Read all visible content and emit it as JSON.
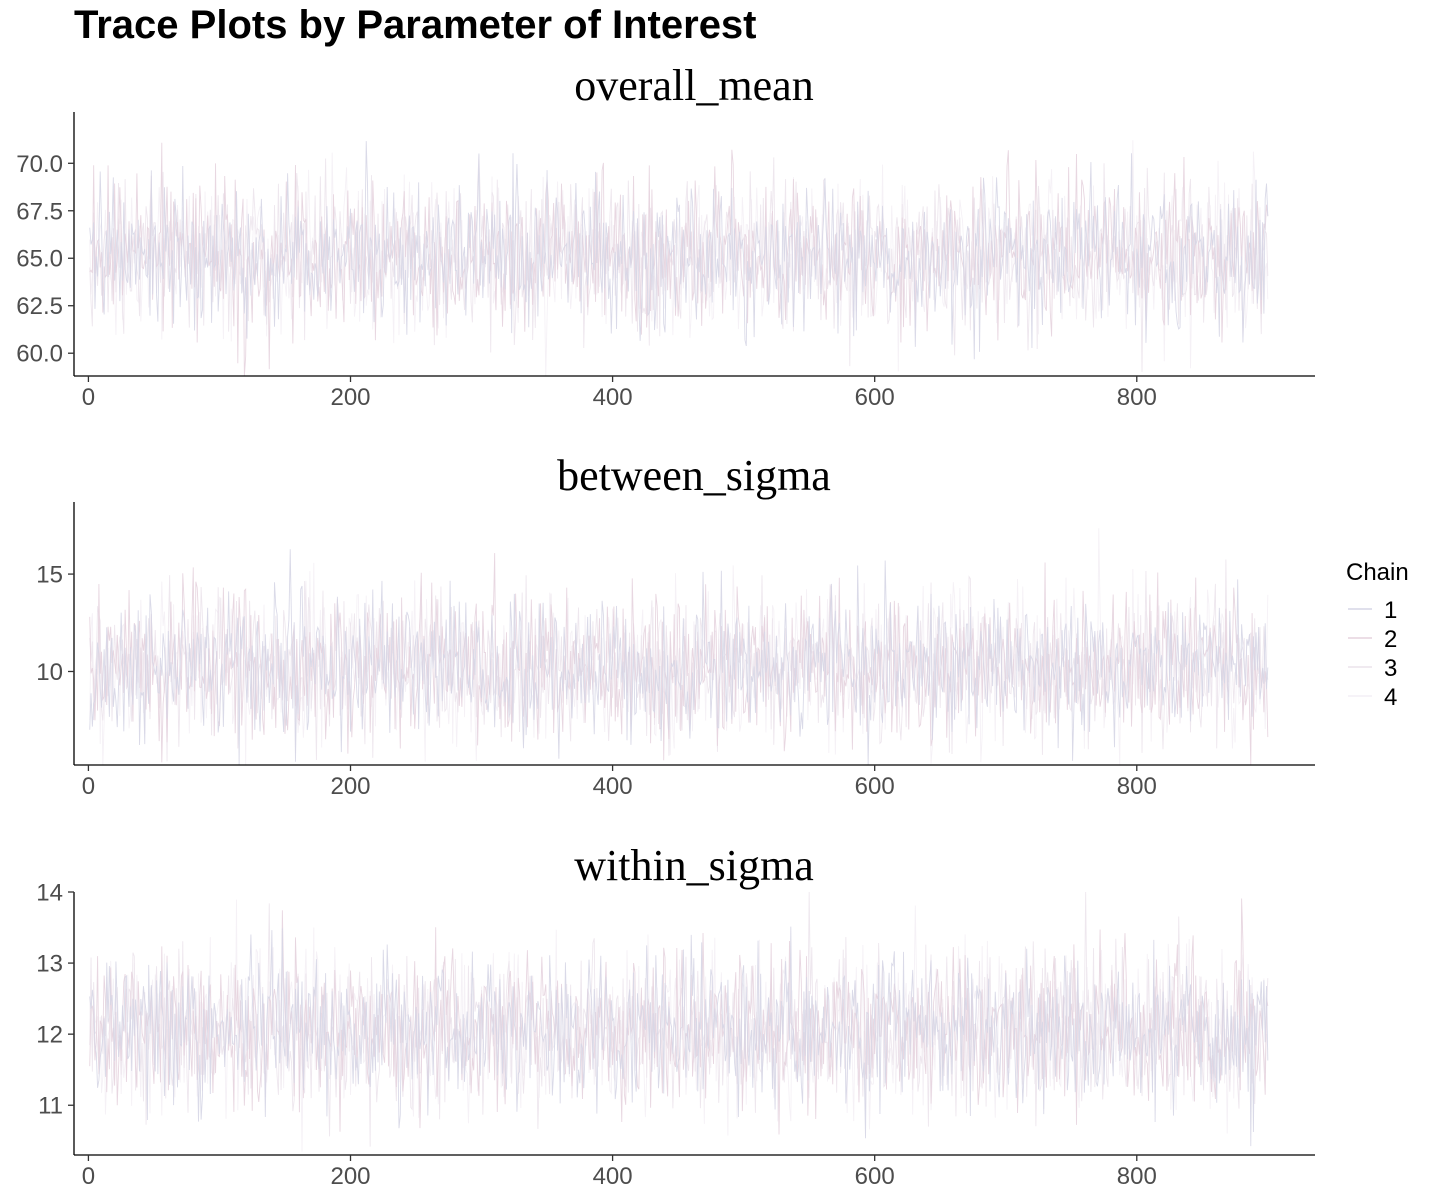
{
  "title": "Trace Plots by Parameter of Interest",
  "legend": {
    "title": "Chain",
    "placement": "right"
  },
  "chart_data": [
    {
      "type": "line",
      "title": "overall_mean",
      "xlabel": "",
      "ylabel": "",
      "xlim": [
        -11,
        936
      ],
      "ylim": [
        58.8,
        72.7
      ],
      "x_ticks": [
        0,
        200,
        400,
        600,
        800
      ],
      "x_tick_labels": [
        "0",
        "200",
        "400",
        "600",
        "800"
      ],
      "y_ticks": [
        60.0,
        62.5,
        65.0,
        67.5,
        70.0
      ],
      "y_tick_labels": [
        "60.0",
        "62.5",
        "65.0",
        "67.5",
        "70.0"
      ],
      "n_iterations": 900,
      "center": 65.2,
      "spread": 1.9,
      "grid": false,
      "series": [
        {
          "name": "1",
          "color": "#d6d6e6"
        },
        {
          "name": "2",
          "color": "#e6d3de"
        },
        {
          "name": "3",
          "color": "#ece4ec"
        },
        {
          "name": "4",
          "color": "#f4eff5"
        }
      ]
    },
    {
      "type": "line",
      "title": "between_sigma",
      "xlabel": "",
      "ylabel": "",
      "xlim": [
        -11,
        936
      ],
      "ylim": [
        5.2,
        18.7
      ],
      "x_ticks": [
        0,
        200,
        400,
        600,
        800
      ],
      "x_tick_labels": [
        "0",
        "200",
        "400",
        "600",
        "800"
      ],
      "y_ticks": [
        10,
        15
      ],
      "y_tick_labels": [
        "10",
        "15"
      ],
      "n_iterations": 900,
      "center": 10.2,
      "spread": 1.8,
      "grid": false,
      "series": [
        {
          "name": "1",
          "color": "#d6d6e6"
        },
        {
          "name": "2",
          "color": "#e6d3de"
        },
        {
          "name": "3",
          "color": "#ece4ec"
        },
        {
          "name": "4",
          "color": "#f4eff5"
        }
      ]
    },
    {
      "type": "line",
      "title": "within_sigma",
      "xlabel": "",
      "ylabel": "",
      "xlim": [
        -11,
        936
      ],
      "ylim": [
        10.3,
        14.0
      ],
      "x_ticks": [
        0,
        200,
        400,
        600,
        800
      ],
      "x_tick_labels": [
        "0",
        "200",
        "400",
        "600",
        "800"
      ],
      "y_ticks": [
        11,
        12,
        13,
        14
      ],
      "y_tick_labels": [
        "11",
        "12",
        "13",
        "14"
      ],
      "n_iterations": 900,
      "center": 12.05,
      "spread": 0.55,
      "grid": false,
      "series": [
        {
          "name": "1",
          "color": "#d6d6e6"
        },
        {
          "name": "2",
          "color": "#e6d3de"
        },
        {
          "name": "3",
          "color": "#ece4ec"
        },
        {
          "name": "4",
          "color": "#f4eff5"
        }
      ]
    }
  ]
}
